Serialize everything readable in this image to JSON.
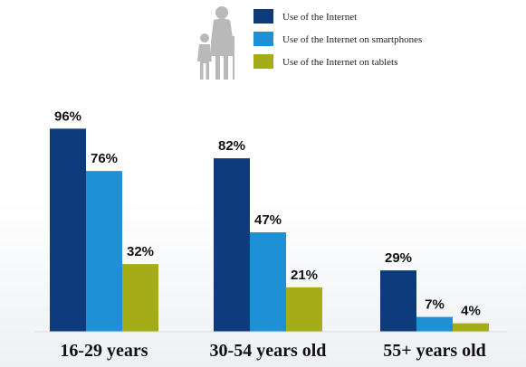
{
  "chart_data": {
    "type": "bar",
    "categories": [
      "16-29 years",
      "30-54 years old",
      "55+ years old"
    ],
    "series": [
      {
        "name": "Use of the Internet",
        "values": [
          96,
          82,
          29
        ],
        "labels": [
          "96%",
          "82%",
          "29%"
        ]
      },
      {
        "name": "Use of the Internet on smartphones",
        "values": [
          76,
          47,
          7
        ],
        "labels": [
          "76%",
          "47%",
          "7%"
        ]
      },
      {
        "name": "Use of the Internet on tablets",
        "values": [
          32,
          21,
          4
        ],
        "labels": [
          "32%",
          "21%",
          "4%"
        ]
      }
    ],
    "ylim": [
      0,
      100
    ],
    "grid": false,
    "legend_position": "top-center",
    "colors": [
      "#0d3b7c",
      "#1e90d6",
      "#a4ad17"
    ],
    "legend_icon": "grandparent-and-child-icon"
  }
}
